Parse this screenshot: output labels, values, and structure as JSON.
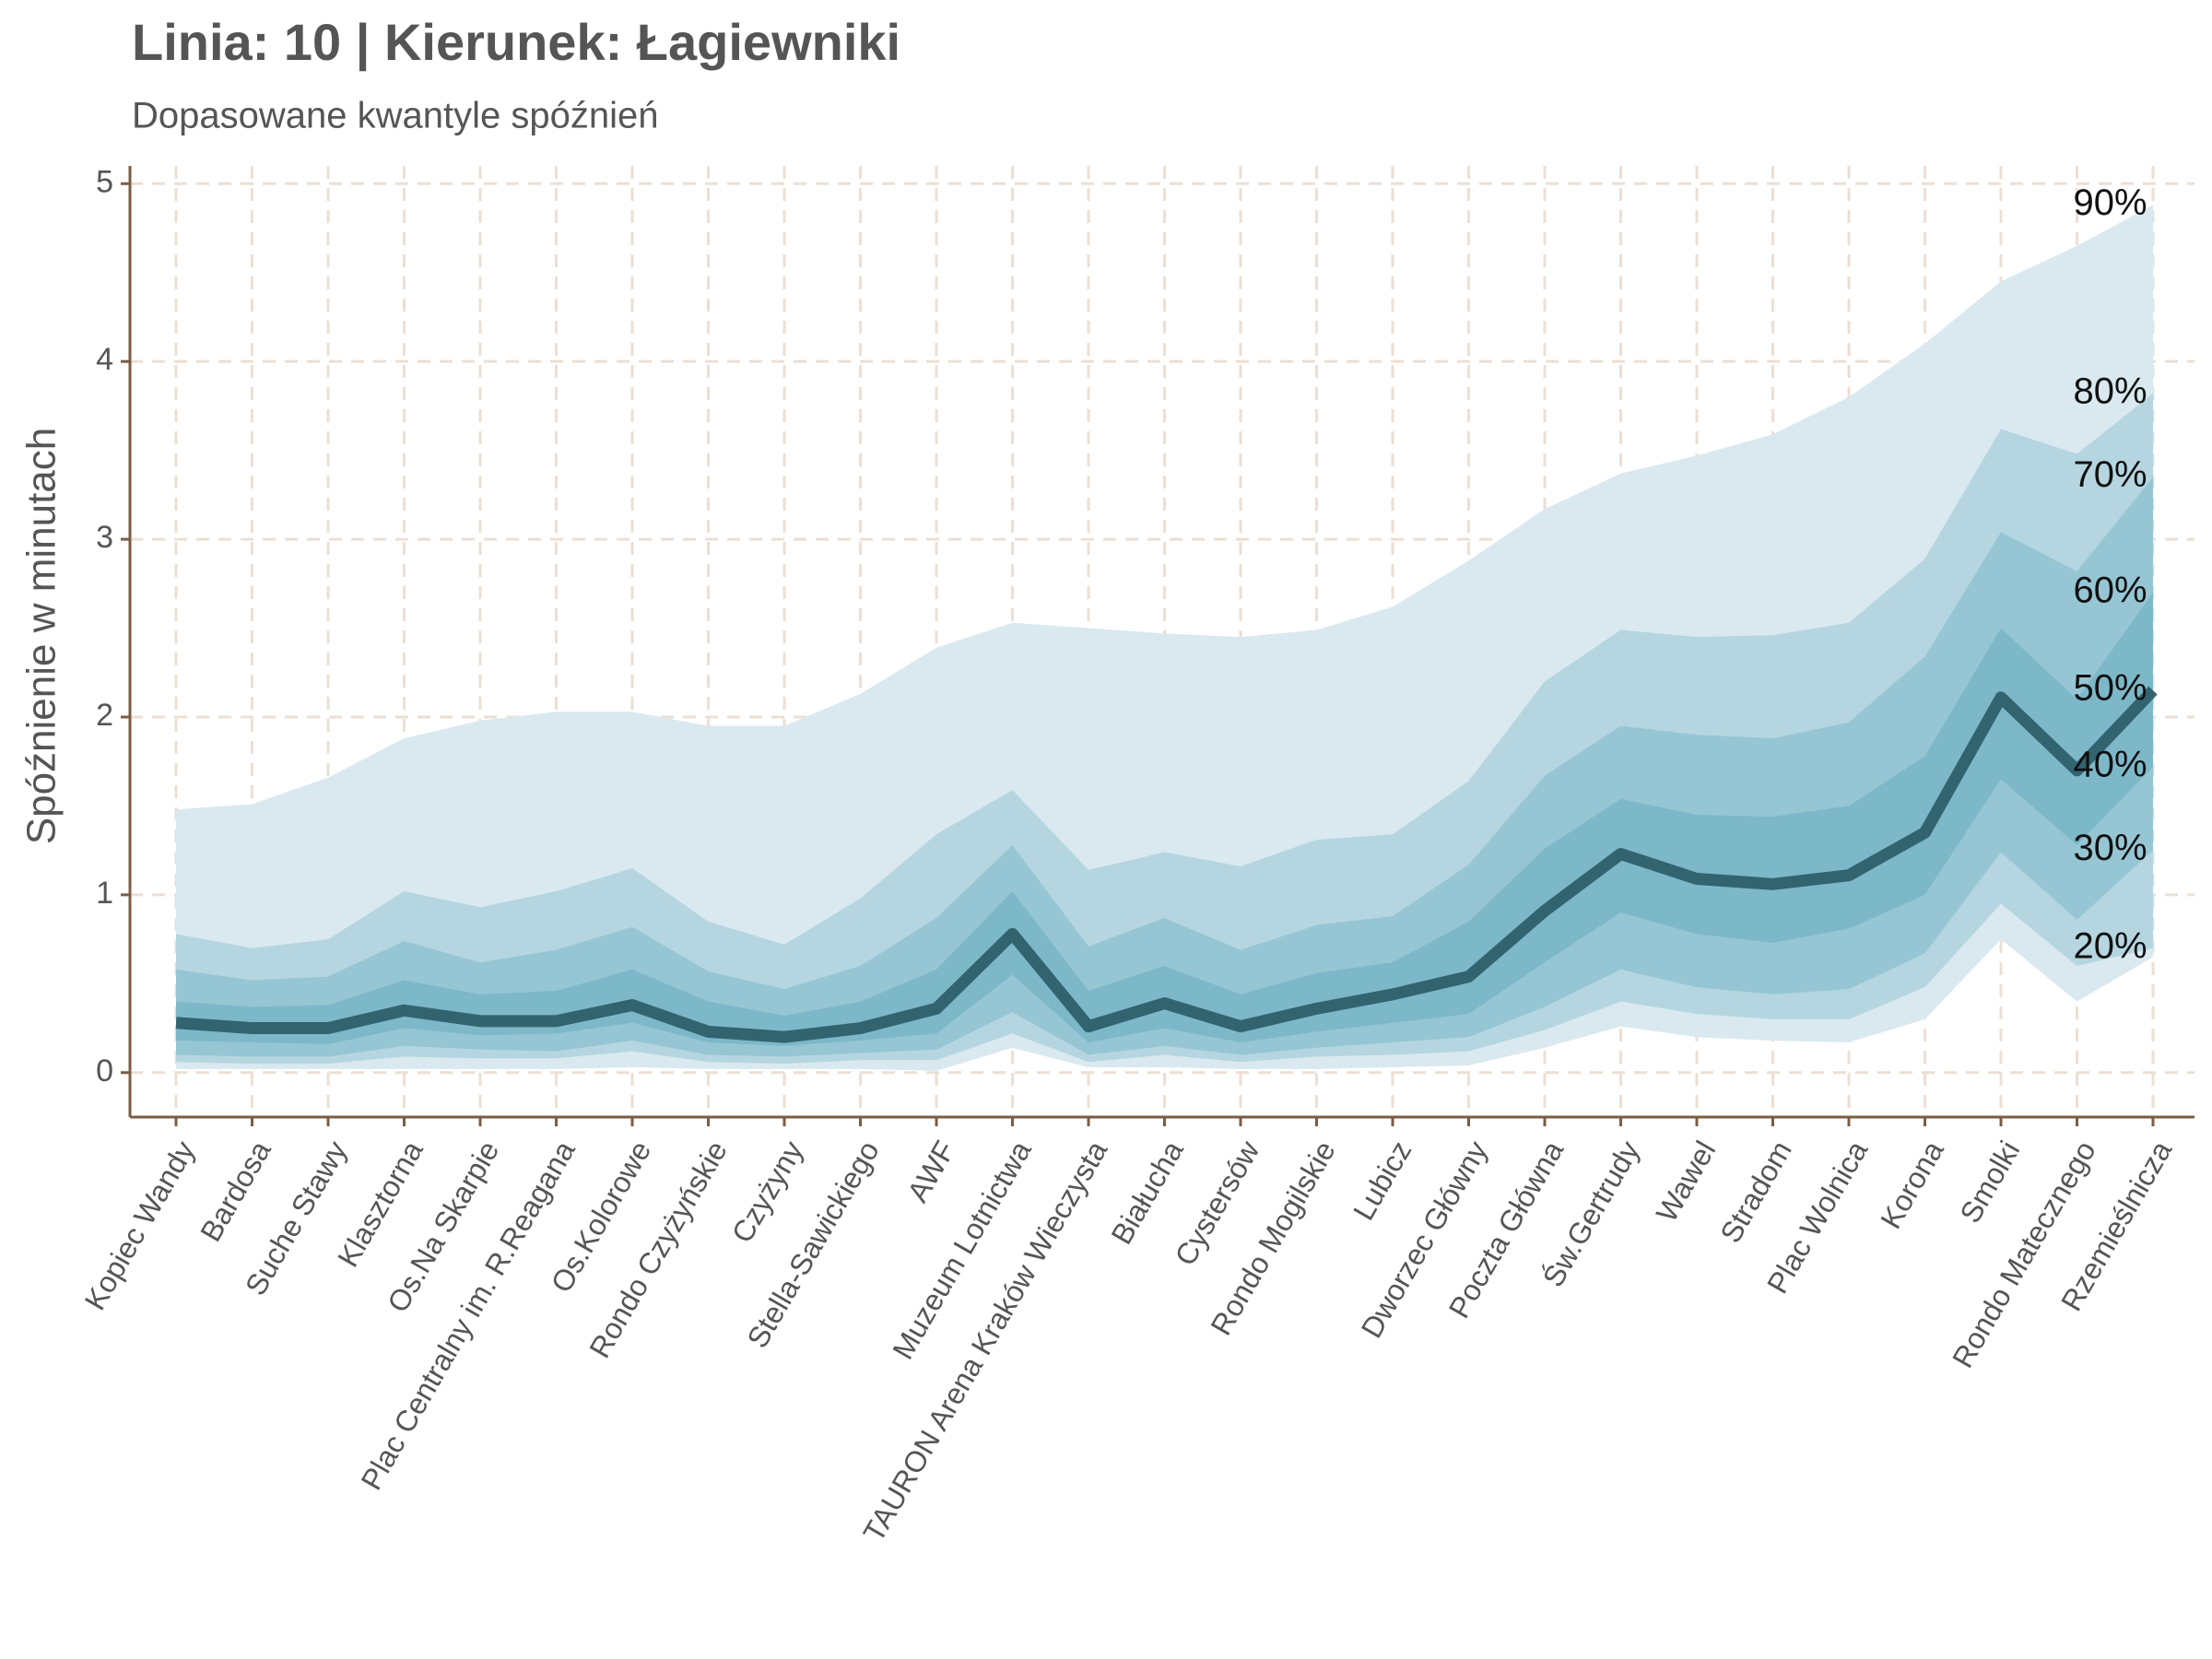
{
  "chart_data": {
    "type": "fan",
    "title": "Linia: 10 | Kierunek: Łagiewniki",
    "subtitle": "Dopasowane kwantyle spóźnień",
    "y_label": "Spóźnienie w minutach",
    "categories": [
      "Kopiec Wandy",
      "Bardosa",
      "Suche Stawy",
      "Klasztorna",
      "Os.Na Skarpie",
      "Plac Centralny im. R.Reagana",
      "Os.Kolorowe",
      "Rondo Czyżyńskie",
      "Czyżyny",
      "Stella-Sawickiego",
      "AWF",
      "Muzeum Lotnictwa",
      "TAURON Arena Kraków Wieczysta",
      "Białucha",
      "Cystersów",
      "Rondo Mogilskie",
      "Lubicz",
      "Dworzec Główny",
      "Poczta Główna",
      "Św.Gertrudy",
      "Wawel",
      "Stradom",
      "Plac Wolnica",
      "Korona",
      "Smolki",
      "Rondo Matecznego",
      "Rzemieślnicza"
    ],
    "series": [
      {
        "values": [
          0.02,
          0.02,
          0.02,
          0.02,
          0.02,
          0.02,
          0.03,
          0.02,
          0.02,
          0.02,
          0.01,
          0.14,
          0.03,
          0.03,
          0.02,
          0.02,
          0.03,
          0.04,
          0.14,
          0.26,
          0.2,
          0.18,
          0.17,
          0.3,
          0.75,
          0.4,
          0.65
        ]
      },
      {
        "name": "20%",
        "values": [
          0.06,
          0.05,
          0.05,
          0.09,
          0.08,
          0.08,
          0.12,
          0.06,
          0.05,
          0.07,
          0.07,
          0.22,
          0.06,
          0.1,
          0.06,
          0.09,
          0.1,
          0.12,
          0.24,
          0.4,
          0.33,
          0.3,
          0.3,
          0.48,
          0.95,
          0.6,
          0.7
        ]
      },
      {
        "name": "30%",
        "values": [
          0.1,
          0.09,
          0.09,
          0.15,
          0.13,
          0.12,
          0.18,
          0.1,
          0.09,
          0.11,
          0.13,
          0.34,
          0.1,
          0.15,
          0.1,
          0.14,
          0.17,
          0.2,
          0.37,
          0.58,
          0.48,
          0.44,
          0.47,
          0.67,
          1.24,
          0.86,
          1.25
        ]
      },
      {
        "name": "40%",
        "values": [
          0.18,
          0.17,
          0.16,
          0.25,
          0.21,
          0.22,
          0.28,
          0.17,
          0.15,
          0.18,
          0.22,
          0.55,
          0.17,
          0.25,
          0.17,
          0.23,
          0.28,
          0.33,
          0.62,
          0.9,
          0.78,
          0.73,
          0.81,
          1.0,
          1.65,
          1.28,
          1.72
        ]
      },
      {
        "name": "50%",
        "values": [
          0.28,
          0.25,
          0.25,
          0.35,
          0.29,
          0.29,
          0.38,
          0.23,
          0.2,
          0.25,
          0.36,
          0.78,
          0.26,
          0.39,
          0.26,
          0.36,
          0.44,
          0.54,
          0.91,
          1.23,
          1.09,
          1.06,
          1.11,
          1.35,
          2.11,
          1.7,
          2.15
        ]
      },
      {
        "name": "60%",
        "values": [
          0.4,
          0.37,
          0.38,
          0.52,
          0.44,
          0.46,
          0.58,
          0.4,
          0.32,
          0.4,
          0.58,
          1.02,
          0.46,
          0.6,
          0.44,
          0.56,
          0.62,
          0.85,
          1.26,
          1.54,
          1.45,
          1.44,
          1.5,
          1.78,
          2.5,
          2.1,
          2.7
        ]
      },
      {
        "name": "70%",
        "values": [
          0.58,
          0.52,
          0.54,
          0.74,
          0.62,
          0.69,
          0.82,
          0.57,
          0.47,
          0.6,
          0.87,
          1.28,
          0.71,
          0.87,
          0.69,
          0.83,
          0.88,
          1.17,
          1.67,
          1.95,
          1.9,
          1.88,
          1.97,
          2.34,
          3.04,
          2.82,
          3.35
        ]
      },
      {
        "name": "80%",
        "values": [
          0.78,
          0.7,
          0.75,
          1.02,
          0.93,
          1.02,
          1.15,
          0.85,
          0.72,
          0.98,
          1.34,
          1.59,
          1.14,
          1.24,
          1.16,
          1.31,
          1.34,
          1.64,
          2.2,
          2.49,
          2.45,
          2.46,
          2.53,
          2.89,
          3.62,
          3.48,
          3.82
        ]
      },
      {
        "name": "90%",
        "values": [
          1.48,
          1.51,
          1.66,
          1.88,
          1.98,
          2.03,
          2.03,
          1.95,
          1.95,
          2.13,
          2.39,
          2.53,
          2.5,
          2.47,
          2.45,
          2.49,
          2.62,
          2.88,
          3.17,
          3.37,
          3.47,
          3.59,
          3.8,
          4.1,
          4.45,
          4.65,
          4.88
        ]
      }
    ],
    "band_colors": [
      "#d9e9ef",
      "#b5d6e0",
      "#96c6d4",
      "#7db8c9"
    ],
    "median_color": "#2e5f6b",
    "ylim": [
      -0.25,
      5.1
    ],
    "yticks": [
      0,
      1,
      2,
      3,
      4,
      5
    ],
    "grid": true
  }
}
